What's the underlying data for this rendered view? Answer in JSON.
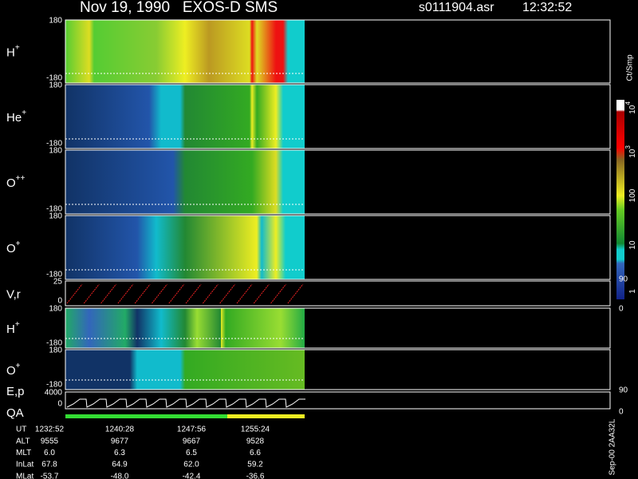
{
  "header": {
    "title": "Nov 19, 1990   EXOS-D SMS",
    "file": "s0111904.asr",
    "time": "12:32:52"
  },
  "panels": [
    {
      "label": "H",
      "sup": "+",
      "ticks": [
        180,
        -180
      ]
    },
    {
      "label": "He",
      "sup": "+",
      "ticks": [
        180,
        -180
      ]
    },
    {
      "label": "O",
      "sup": "++",
      "ticks": [
        180,
        -180
      ]
    },
    {
      "label": "O",
      "sup": "+",
      "ticks": [
        180,
        -180
      ]
    },
    {
      "label": "V,r",
      "ticks": [
        25,
        0
      ],
      "right_ticks": [
        90,
        0
      ]
    },
    {
      "label": "H",
      "sup": "+",
      "ticks": [
        180,
        -180
      ]
    },
    {
      "label": "O",
      "sup": "+",
      "ticks": [
        180,
        -180
      ]
    },
    {
      "label": "E,p",
      "label2": "QA",
      "ticks": [
        4000,
        0
      ],
      "right_ticks": [
        90,
        0
      ]
    }
  ],
  "colorbar": {
    "unit": "Ct/Smp",
    "labels": [
      {
        "base": "10",
        "exp": "4"
      },
      {
        "base": "10",
        "exp": "3"
      },
      {
        "base": "100"
      },
      {
        "base": "10"
      },
      {
        "base": "1"
      }
    ]
  },
  "table": {
    "rows": [
      {
        "label": "UT",
        "values": [
          "1232:52",
          "1240:28",
          "1247:56",
          "1255:24"
        ]
      },
      {
        "label": "ALT",
        "values": [
          "9555",
          "9677",
          "9667",
          "9528"
        ]
      },
      {
        "label": "MLT",
        "values": [
          "6.0",
          "6.3",
          "6.5",
          "6.6"
        ]
      },
      {
        "label": "InLat",
        "values": [
          "67.8",
          "64.9",
          "62.0",
          "59.2"
        ]
      },
      {
        "label": "MLat",
        "values": [
          "-53.7",
          "-48.0",
          "-42.4",
          "-36.6"
        ]
      }
    ]
  },
  "footer_note": "Sep-00 2AA32L"
}
